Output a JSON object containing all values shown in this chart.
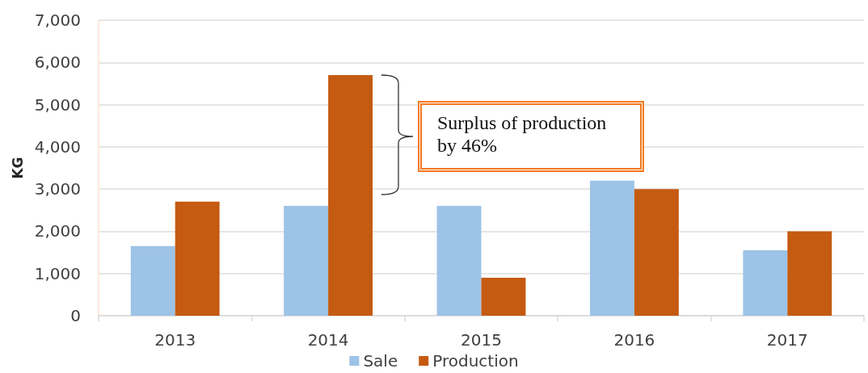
{
  "chart_data": {
    "type": "bar",
    "ylabel": "KG",
    "categories": [
      "2013",
      "2014",
      "2015",
      "2016",
      "2017"
    ],
    "series": [
      {
        "name": "Sale",
        "color": "#9dc3e6",
        "values": [
          1650,
          2600,
          2600,
          3200,
          1550
        ]
      },
      {
        "name": "Production",
        "color": "#c55a11",
        "values": [
          2700,
          5700,
          900,
          3000,
          2000
        ]
      }
    ],
    "ylim": [
      0,
      7000
    ],
    "yticks": [
      0,
      {
        "value": 1000,
        "label": "1,000"
      },
      {
        "value": 2000,
        "label": "2,000"
      },
      {
        "value": 3000,
        "label": "3,000"
      },
      {
        "value": 4000,
        "label": "4,000"
      },
      {
        "value": 5000,
        "label": "5,000"
      },
      {
        "value": 6000,
        "label": "6,000"
      },
      {
        "value": 7000,
        "label": "7,000"
      }
    ],
    "grid": "y",
    "legend": "bottom",
    "annotations": [
      "Surplus of production by 46%"
    ]
  }
}
